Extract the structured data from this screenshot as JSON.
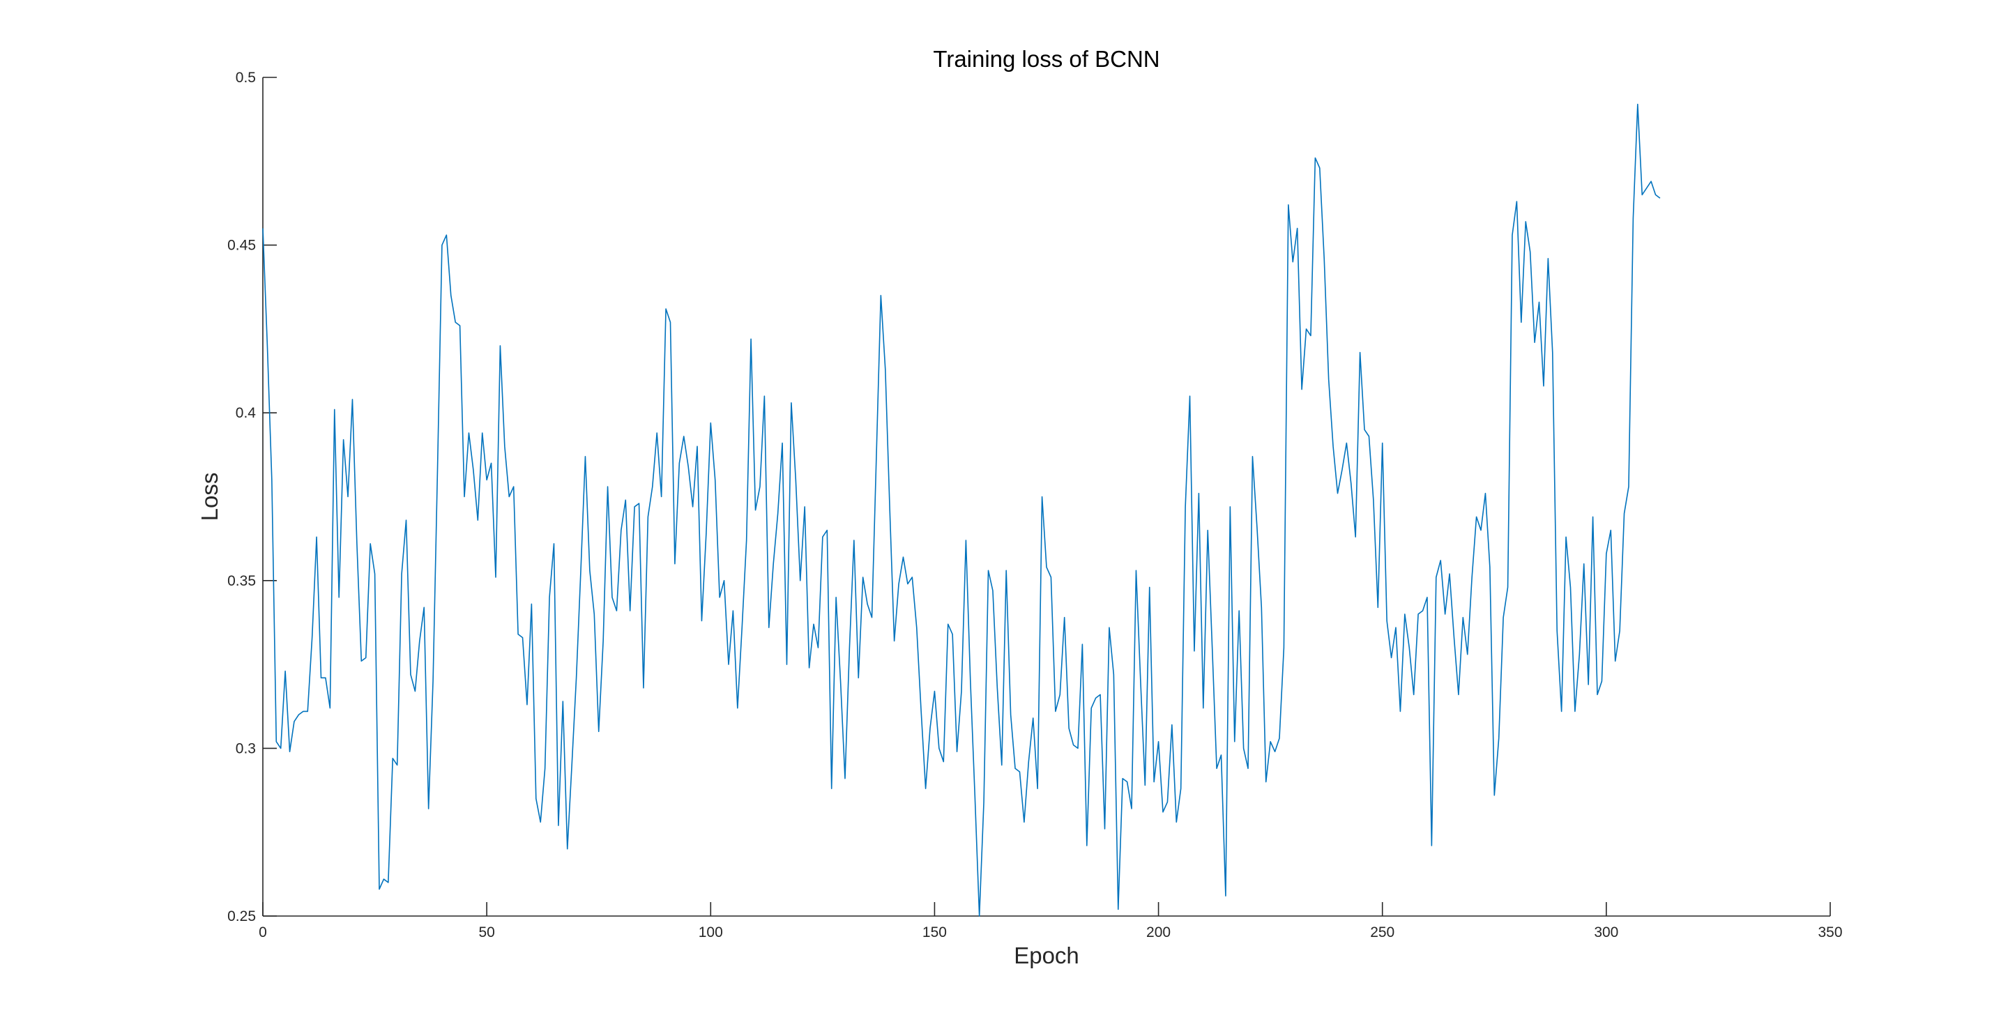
{
  "chart_data": {
    "type": "line",
    "title": "Training loss of BCNN",
    "xlabel": "Epoch",
    "ylabel": "Loss",
    "xlim": [
      0,
      350
    ],
    "ylim": [
      0.25,
      0.5
    ],
    "xticks": [
      0,
      50,
      100,
      150,
      200,
      250,
      300,
      350
    ],
    "yticks": [
      0.25,
      0.3,
      0.35,
      0.4,
      0.45,
      0.5
    ],
    "grid": false,
    "legend": "none",
    "series_color": "#0072BD",
    "series": [
      {
        "y": [
          0.455,
          0.42,
          0.38,
          0.302,
          0.3,
          0.323,
          0.299,
          0.308,
          0.31,
          0.311,
          0.311,
          0.333,
          0.363,
          0.321,
          0.321,
          0.312,
          0.401,
          0.345,
          0.392,
          0.375,
          0.404,
          0.361,
          0.326,
          0.327,
          0.361,
          0.352,
          0.258,
          0.261,
          0.26,
          0.297,
          0.295,
          0.352,
          0.368,
          0.322,
          0.317,
          0.332,
          0.342,
          0.282,
          0.32,
          0.383,
          0.45,
          0.453,
          0.435,
          0.427,
          0.426,
          0.375,
          0.394,
          0.383,
          0.368,
          0.394,
          0.38,
          0.385,
          0.351,
          0.42,
          0.39,
          0.375,
          0.378,
          0.334,
          0.333,
          0.313,
          0.343,
          0.285,
          0.278,
          0.294,
          0.345,
          0.361,
          0.277,
          0.314,
          0.27,
          0.295,
          0.321,
          0.353,
          0.387,
          0.353,
          0.34,
          0.305,
          0.332,
          0.378,
          0.345,
          0.341,
          0.365,
          0.374,
          0.341,
          0.372,
          0.373,
          0.318,
          0.369,
          0.378,
          0.394,
          0.375,
          0.431,
          0.427,
          0.355,
          0.385,
          0.393,
          0.384,
          0.372,
          0.39,
          0.338,
          0.364,
          0.397,
          0.38,
          0.345,
          0.35,
          0.325,
          0.341,
          0.312,
          0.336,
          0.362,
          0.422,
          0.371,
          0.378,
          0.405,
          0.336,
          0.355,
          0.37,
          0.391,
          0.325,
          0.403,
          0.38,
          0.35,
          0.372,
          0.324,
          0.337,
          0.33,
          0.363,
          0.365,
          0.288,
          0.345,
          0.32,
          0.291,
          0.33,
          0.362,
          0.321,
          0.351,
          0.343,
          0.339,
          0.387,
          0.435,
          0.413,
          0.371,
          0.332,
          0.349,
          0.357,
          0.349,
          0.351,
          0.336,
          0.311,
          0.288,
          0.306,
          0.317,
          0.3,
          0.296,
          0.337,
          0.334,
          0.299,
          0.317,
          0.362,
          0.32,
          0.286,
          0.25,
          0.284,
          0.353,
          0.347,
          0.318,
          0.295,
          0.353,
          0.31,
          0.294,
          0.293,
          0.278,
          0.296,
          0.309,
          0.288,
          0.375,
          0.354,
          0.351,
          0.311,
          0.316,
          0.339,
          0.306,
          0.301,
          0.3,
          0.331,
          0.271,
          0.312,
          0.315,
          0.316,
          0.276,
          0.336,
          0.322,
          0.252,
          0.291,
          0.29,
          0.282,
          0.353,
          0.32,
          0.289,
          0.348,
          0.29,
          0.302,
          0.281,
          0.284,
          0.307,
          0.278,
          0.288,
          0.372,
          0.405,
          0.329,
          0.376,
          0.312,
          0.365,
          0.33,
          0.294,
          0.298,
          0.256,
          0.372,
          0.302,
          0.341,
          0.3,
          0.294,
          0.387,
          0.366,
          0.342,
          0.29,
          0.302,
          0.299,
          0.303,
          0.33,
          0.462,
          0.445,
          0.455,
          0.407,
          0.425,
          0.423,
          0.476,
          0.473,
          0.446,
          0.41,
          0.39,
          0.376,
          0.383,
          0.391,
          0.379,
          0.363,
          0.418,
          0.395,
          0.393,
          0.374,
          0.342,
          0.391,
          0.338,
          0.327,
          0.336,
          0.311,
          0.34,
          0.33,
          0.316,
          0.34,
          0.341,
          0.345,
          0.271,
          0.351,
          0.356,
          0.34,
          0.352,
          0.333,
          0.316,
          0.339,
          0.328,
          0.351,
          0.369,
          0.365,
          0.376,
          0.354,
          0.286,
          0.303,
          0.339,
          0.348,
          0.453,
          0.463,
          0.427,
          0.457,
          0.448,
          0.421,
          0.433,
          0.408,
          0.446,
          0.418,
          0.335,
          0.311,
          0.363,
          0.348,
          0.311,
          0.328,
          0.355,
          0.319,
          0.369,
          0.316,
          0.32,
          0.358,
          0.365,
          0.326,
          0.335,
          0.37,
          0.378,
          0.458,
          0.492,
          0.465,
          0.467,
          0.469,
          0.465,
          0.464
        ]
      }
    ]
  }
}
